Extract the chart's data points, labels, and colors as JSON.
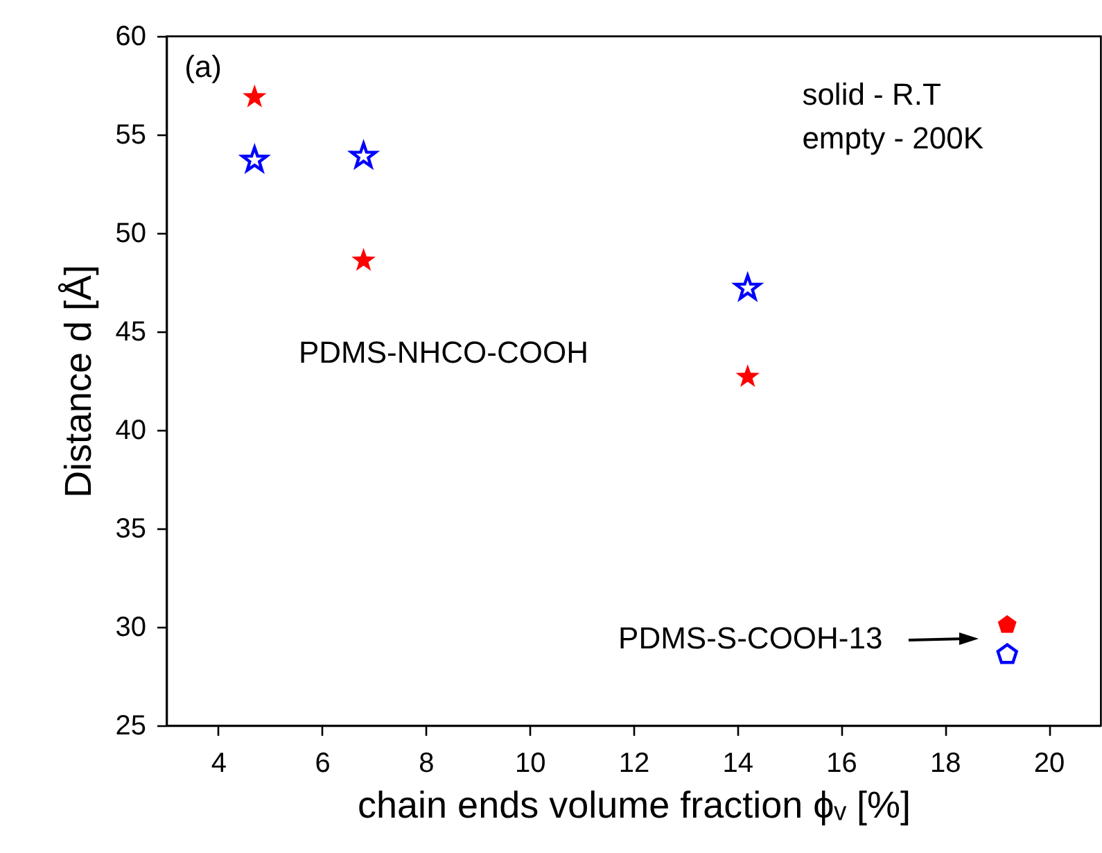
{
  "chart_data": {
    "type": "scatter",
    "xlabel": "chain ends volume fraction ϕᵥ [%]",
    "ylabel": "Distance d [Å]",
    "xlim": [
      3,
      21
    ],
    "xticks": [
      4,
      6,
      8,
      10,
      12,
      14,
      16,
      18,
      20
    ],
    "ylim": [
      25,
      60
    ],
    "yticks": [
      25,
      30,
      35,
      40,
      45,
      50,
      55,
      60
    ],
    "grid": false,
    "series": [
      {
        "color": "#ff0000",
        "marker": "star",
        "x": [
          4.7,
          6.8,
          14.2
        ],
        "values": [
          56.9,
          48.6,
          42.7
        ]
      },
      {
        "color": "#0000ff",
        "marker": "star",
        "x": [
          4.7,
          6.8,
          14.2
        ],
        "values": [
          53.7,
          53.9,
          47.2
        ]
      },
      {
        "color": "#ff0000",
        "x": [
          19.2
        ],
        "values": [
          30.1
        ]
      },
      {
        "color": "#0000ff",
        "x": [
          19.2
        ],
        "values": [
          28.6
        ]
      }
    ],
    "annotations": [
      "(a)",
      "solid - R.T",
      "empty - 200K",
      "PDMS-NHCO-COOH",
      "PDMS-S-COOH-13"
    ]
  }
}
